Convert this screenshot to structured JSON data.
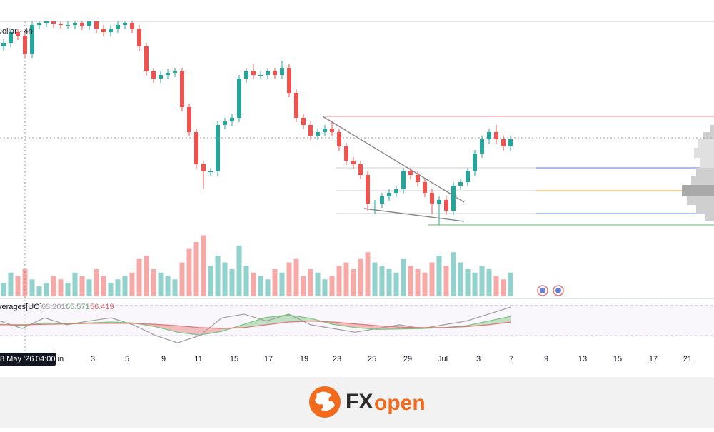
{
  "chart_data": {
    "type": "candlestick",
    "title": "Dollar · 4h",
    "ylim": [
      0,
      300
    ],
    "up_color": "#26a69a",
    "down_color": "#ef5350",
    "open": [
      265,
      270,
      285,
      280,
      255,
      295,
      298,
      300,
      297,
      295,
      295,
      298,
      294,
      300,
      290,
      285,
      290,
      295,
      298,
      290,
      265,
      230,
      220,
      225,
      228,
      230,
      180,
      145,
      100,
      90,
      90,
      155,
      160,
      165,
      220,
      230,
      225,
      225,
      230,
      225,
      235,
      200,
      165,
      155,
      140,
      145,
      150,
      145,
      125,
      105,
      100,
      85,
      45,
      45,
      55,
      60,
      65,
      90,
      85,
      75,
      60,
      45,
      50,
      35,
      70,
      75,
      90,
      115,
      135,
      145,
      135,
      125
    ],
    "high": [
      275,
      290,
      290,
      285,
      300,
      303,
      305,
      305,
      302,
      300,
      303,
      303,
      305,
      305,
      295,
      295,
      300,
      303,
      303,
      295,
      270,
      235,
      230,
      233,
      235,
      235,
      185,
      150,
      105,
      95,
      160,
      165,
      170,
      225,
      235,
      240,
      230,
      235,
      235,
      245,
      240,
      205,
      170,
      160,
      150,
      155,
      160,
      150,
      130,
      110,
      105,
      90,
      50,
      60,
      65,
      70,
      95,
      95,
      90,
      80,
      65,
      55,
      55,
      75,
      80,
      95,
      120,
      140,
      150,
      155,
      140,
      140
    ],
    "low": [
      259,
      264,
      274,
      249,
      249,
      289,
      292,
      291,
      289,
      289,
      289,
      288,
      288,
      284,
      279,
      279,
      284,
      289,
      284,
      259,
      224,
      214,
      214,
      219,
      222,
      174,
      139,
      94,
      65,
      84,
      84,
      149,
      154,
      159,
      214,
      219,
      219,
      219,
      219,
      219,
      194,
      159,
      149,
      134,
      134,
      139,
      139,
      119,
      99,
      94,
      79,
      35,
      30,
      39,
      49,
      54,
      59,
      79,
      69,
      54,
      30,
      15,
      29,
      29,
      64,
      69,
      84,
      109,
      129,
      129,
      119,
      119
    ],
    "close": [
      270,
      285,
      280,
      255,
      295,
      298,
      300,
      297,
      295,
      295,
      298,
      294,
      300,
      290,
      285,
      290,
      295,
      298,
      290,
      265,
      230,
      220,
      225,
      228,
      230,
      180,
      145,
      100,
      90,
      90,
      155,
      160,
      165,
      220,
      230,
      225,
      225,
      230,
      225,
      235,
      200,
      165,
      155,
      140,
      145,
      150,
      145,
      125,
      105,
      100,
      85,
      45,
      45,
      55,
      60,
      65,
      90,
      85,
      75,
      60,
      45,
      50,
      35,
      70,
      75,
      90,
      115,
      135,
      145,
      135,
      125,
      135
    ],
    "volume": {
      "ylim": [
        0,
        100
      ],
      "values": [
        20,
        35,
        30,
        40,
        25,
        15,
        20,
        30,
        25,
        20,
        35,
        30,
        25,
        40,
        30,
        20,
        25,
        30,
        35,
        55,
        60,
        40,
        35,
        30,
        25,
        50,
        70,
        80,
        90,
        45,
        60,
        50,
        40,
        75,
        45,
        35,
        30,
        25,
        40,
        35,
        50,
        55,
        30,
        40,
        35,
        25,
        30,
        45,
        50,
        40,
        55,
        65,
        50,
        45,
        40,
        35,
        55,
        45,
        40,
        35,
        50,
        60,
        45,
        65,
        50,
        40,
        35,
        45,
        40,
        30,
        25,
        35
      ]
    },
    "x_labels": [
      "un",
      "3",
      "5",
      "9",
      "11",
      "15",
      "17",
      "19",
      "23",
      "25",
      "29",
      "Jul",
      "3",
      "7",
      "9",
      "13",
      "15",
      "17",
      "21"
    ],
    "crosshair_label": [
      "8 May '26",
      "04:00"
    ],
    "indicator": {
      "title": "verages[UO]",
      "readouts": [
        63.201,
        65.571,
        56.419
      ],
      "ylim": [
        0,
        100
      ],
      "series": [
        {
          "color": "#9e9e9e",
          "values": [
            62,
            46,
            69,
            54,
            62,
            69,
            54,
            31,
            15,
            31,
            69,
            77,
            62,
            77,
            54,
            46,
            38,
            46,
            54,
            46,
            54,
            62,
            77,
            92
          ]
        },
        {
          "color": "#7bc47f",
          "values": [
            55,
            52,
            58,
            57,
            58,
            60,
            58,
            50,
            38,
            32,
            40,
            55,
            70,
            75,
            68,
            55,
            48,
            44,
            45,
            46,
            48,
            52,
            62,
            72
          ]
        },
        {
          "color": "#e57373",
          "values": [
            54,
            54,
            55,
            56,
            57,
            57,
            57,
            55,
            52,
            48,
            46,
            48,
            54,
            60,
            62,
            60,
            56,
            52,
            49,
            48,
            48,
            50,
            54,
            60
          ]
        }
      ]
    }
  },
  "footer": {
    "logo_fx": "FX",
    "logo_open": "open"
  }
}
